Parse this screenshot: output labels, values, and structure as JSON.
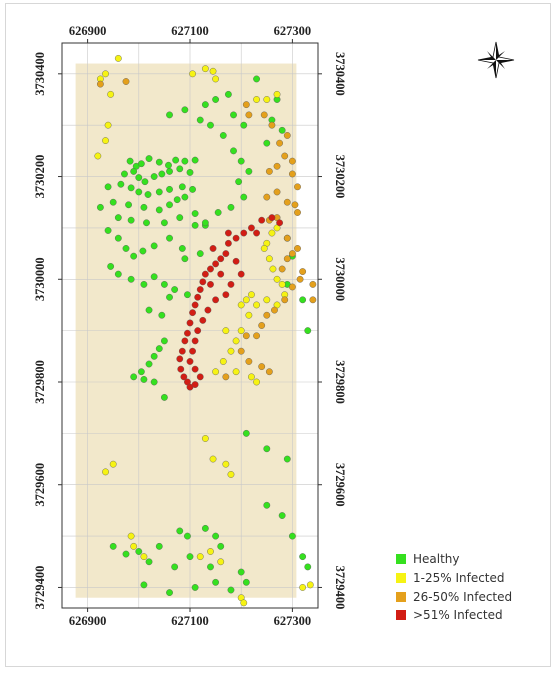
{
  "map": {
    "x_ticks": [
      "626900",
      "627100",
      "627300"
    ],
    "y_ticks": [
      "3730400",
      "3730200",
      "3730000",
      "3729800",
      "3729600",
      "3729400"
    ],
    "north_arrow_icon": "compass-rose-icon"
  },
  "legend": [
    {
      "label": "Healthy",
      "color": "#35e01f"
    },
    {
      "label": "1-25% Infected",
      "color": "#f6f313"
    },
    {
      "label": "26-50% Infected",
      "color": "#e4a01c"
    },
    {
      "label": ">51% Infected",
      "color": "#d21d14"
    }
  ],
  "colors": {
    "study_area": "#f2e8cb",
    "grid": "#c8c8c8",
    "healthy": "#35e01f",
    "low": "#f6f313",
    "medium": "#e4a01c",
    "high": "#d21d14"
  },
  "chart_data": {
    "type": "scatter",
    "xlim": [
      626850,
      627350
    ],
    "ylim": [
      3729360,
      3730460
    ],
    "grid": true,
    "legend_position": "bottom-right",
    "series": [
      {
        "name": "Healthy",
        "color": "#35e01f",
        "points": [
          [
            626983,
            3730230
          ],
          [
            626995,
            3730220
          ],
          [
            627005,
            3730225
          ],
          [
            627020,
            3730235
          ],
          [
            627040,
            3730228
          ],
          [
            627058,
            3730222
          ],
          [
            627072,
            3730232
          ],
          [
            627090,
            3730230
          ],
          [
            627110,
            3730232
          ],
          [
            626972,
            3730205
          ],
          [
            626990,
            3730210
          ],
          [
            627000,
            3730198
          ],
          [
            627012,
            3730190
          ],
          [
            627030,
            3730200
          ],
          [
            627045,
            3730205
          ],
          [
            627060,
            3730210
          ],
          [
            627080,
            3730215
          ],
          [
            627100,
            3730208
          ],
          [
            626940,
            3730180
          ],
          [
            626965,
            3730185
          ],
          [
            626985,
            3730178
          ],
          [
            627000,
            3730170
          ],
          [
            627018,
            3730165
          ],
          [
            627040,
            3730170
          ],
          [
            627060,
            3730175
          ],
          [
            627085,
            3730180
          ],
          [
            627105,
            3730175
          ],
          [
            626925,
            3730140
          ],
          [
            626950,
            3730150
          ],
          [
            626980,
            3730145
          ],
          [
            627010,
            3730140
          ],
          [
            627040,
            3730135
          ],
          [
            627060,
            3730145
          ],
          [
            627075,
            3730155
          ],
          [
            627090,
            3730160
          ],
          [
            626960,
            3730120
          ],
          [
            626985,
            3730115
          ],
          [
            627015,
            3730110
          ],
          [
            627050,
            3730110
          ],
          [
            627080,
            3730120
          ],
          [
            627110,
            3730128
          ],
          [
            626940,
            3730095
          ],
          [
            626960,
            3730080
          ],
          [
            626975,
            3730060
          ],
          [
            626990,
            3730045
          ],
          [
            627008,
            3730055
          ],
          [
            627030,
            3730065
          ],
          [
            627060,
            3730080
          ],
          [
            627085,
            3730060
          ],
          [
            627090,
            3730040
          ],
          [
            627120,
            3730050
          ],
          [
            627110,
            3730105
          ],
          [
            627130,
            3730105
          ],
          [
            626945,
            3730025
          ],
          [
            626960,
            3730010
          ],
          [
            626985,
            3730000
          ],
          [
            627010,
            3729990
          ],
          [
            627030,
            3730005
          ],
          [
            627050,
            3729990
          ],
          [
            627070,
            3729980
          ],
          [
            627095,
            3729970
          ],
          [
            627060,
            3729965
          ],
          [
            627020,
            3729940
          ],
          [
            627045,
            3729930
          ],
          [
            627050,
            3729880
          ],
          [
            627040,
            3729865
          ],
          [
            627030,
            3729850
          ],
          [
            627020,
            3729835
          ],
          [
            627005,
            3729820
          ],
          [
            626990,
            3729810
          ],
          [
            627010,
            3729805
          ],
          [
            627030,
            3729800
          ],
          [
            627050,
            3729770
          ],
          [
            627120,
            3730310
          ],
          [
            627140,
            3730300
          ],
          [
            627165,
            3730280
          ],
          [
            627185,
            3730250
          ],
          [
            627200,
            3730230
          ],
          [
            627215,
            3730210
          ],
          [
            627195,
            3730190
          ],
          [
            627205,
            3730160
          ],
          [
            627180,
            3730140
          ],
          [
            627155,
            3730130
          ],
          [
            627130,
            3730110
          ],
          [
            627185,
            3730320
          ],
          [
            627205,
            3730300
          ],
          [
            627150,
            3730350
          ],
          [
            627130,
            3730340
          ],
          [
            627090,
            3730330
          ],
          [
            627060,
            3730320
          ],
          [
            627175,
            3730360
          ],
          [
            627230,
            3730390
          ],
          [
            627260,
            3730310
          ],
          [
            627280,
            3730290
          ],
          [
            627250,
            3730265
          ],
          [
            627270,
            3730350
          ],
          [
            627290,
            3730080
          ],
          [
            627300,
            3730045
          ],
          [
            627290,
            3729990
          ],
          [
            627320,
            3729960
          ],
          [
            627330,
            3729900
          ],
          [
            627210,
            3729700
          ],
          [
            627250,
            3729670
          ],
          [
            627290,
            3729650
          ],
          [
            626950,
            3729480
          ],
          [
            626975,
            3729465
          ],
          [
            627000,
            3729470
          ],
          [
            627040,
            3729480
          ],
          [
            627080,
            3729510
          ],
          [
            627095,
            3729500
          ],
          [
            627130,
            3729515
          ],
          [
            627150,
            3729500
          ],
          [
            627160,
            3729480
          ],
          [
            627250,
            3729560
          ],
          [
            627280,
            3729540
          ],
          [
            627300,
            3729500
          ],
          [
            627320,
            3729460
          ],
          [
            627330,
            3729440
          ],
          [
            627200,
            3729430
          ],
          [
            627150,
            3729410
          ],
          [
            627180,
            3729395
          ],
          [
            627210,
            3729410
          ],
          [
            627110,
            3729400
          ],
          [
            627060,
            3729390
          ],
          [
            627010,
            3729405
          ],
          [
            627020,
            3729450
          ],
          [
            627070,
            3729440
          ],
          [
            627100,
            3729460
          ],
          [
            627140,
            3729440
          ]
        ]
      },
      {
        "name": "1-25% Infected",
        "color": "#f6f313",
        "points": [
          [
            626935,
            3730400
          ],
          [
            626925,
            3730390
          ],
          [
            626960,
            3730430
          ],
          [
            626945,
            3730360
          ],
          [
            626940,
            3730300
          ],
          [
            626935,
            3730270
          ],
          [
            626920,
            3730240
          ],
          [
            627105,
            3730400
          ],
          [
            627130,
            3730410
          ],
          [
            627145,
            3730405
          ],
          [
            627150,
            3730390
          ],
          [
            627230,
            3730350
          ],
          [
            627250,
            3730350
          ],
          [
            627270,
            3730360
          ],
          [
            627270,
            3730100
          ],
          [
            627260,
            3730090
          ],
          [
            627250,
            3730070
          ],
          [
            627245,
            3730060
          ],
          [
            627255,
            3730040
          ],
          [
            627262,
            3730020
          ],
          [
            627270,
            3730000
          ],
          [
            627280,
            3729990
          ],
          [
            627285,
            3729970
          ],
          [
            627270,
            3729950
          ],
          [
            627250,
            3729960
          ],
          [
            627200,
            3729950
          ],
          [
            627210,
            3729960
          ],
          [
            627220,
            3729970
          ],
          [
            627230,
            3729950
          ],
          [
            627215,
            3729930
          ],
          [
            627200,
            3729900
          ],
          [
            627190,
            3729880
          ],
          [
            627170,
            3729900
          ],
          [
            627180,
            3729860
          ],
          [
            627165,
            3729840
          ],
          [
            627190,
            3729820
          ],
          [
            627220,
            3729810
          ],
          [
            627230,
            3729800
          ],
          [
            627150,
            3729820
          ],
          [
            627145,
            3729650
          ],
          [
            627170,
            3729640
          ],
          [
            627180,
            3729620
          ],
          [
            627130,
            3729690
          ],
          [
            626950,
            3729640
          ],
          [
            626935,
            3729625
          ],
          [
            626985,
            3729500
          ],
          [
            626990,
            3729480
          ],
          [
            627010,
            3729460
          ],
          [
            627120,
            3729460
          ],
          [
            627140,
            3729470
          ],
          [
            627160,
            3729450
          ],
          [
            627200,
            3729380
          ],
          [
            627205,
            3729370
          ],
          [
            627320,
            3729400
          ],
          [
            627335,
            3729405
          ]
        ]
      },
      {
        "name": "26-50% Infected",
        "color": "#e4a01c",
        "points": [
          [
            626925,
            3730380
          ],
          [
            626975,
            3730385
          ],
          [
            627210,
            3730340
          ],
          [
            627215,
            3730320
          ],
          [
            627245,
            3730320
          ],
          [
            627260,
            3730300
          ],
          [
            627290,
            3730280
          ],
          [
            627275,
            3730265
          ],
          [
            627285,
            3730240
          ],
          [
            627300,
            3730230
          ],
          [
            627270,
            3730220
          ],
          [
            627255,
            3730210
          ],
          [
            627300,
            3730205
          ],
          [
            627310,
            3730180
          ],
          [
            627270,
            3730170
          ],
          [
            627250,
            3730160
          ],
          [
            627290,
            3730150
          ],
          [
            627305,
            3730145
          ],
          [
            627310,
            3730130
          ],
          [
            627270,
            3730120
          ],
          [
            627255,
            3730115
          ],
          [
            627290,
            3730080
          ],
          [
            627310,
            3730060
          ],
          [
            627300,
            3730050
          ],
          [
            627290,
            3730040
          ],
          [
            627280,
            3730020
          ],
          [
            627320,
            3730015
          ],
          [
            627315,
            3730000
          ],
          [
            627300,
            3729985
          ],
          [
            627285,
            3729960
          ],
          [
            627265,
            3729940
          ],
          [
            627250,
            3729930
          ],
          [
            627240,
            3729910
          ],
          [
            627230,
            3729890
          ],
          [
            627210,
            3729890
          ],
          [
            627200,
            3729860
          ],
          [
            627215,
            3729840
          ],
          [
            627240,
            3729830
          ],
          [
            627255,
            3729820
          ],
          [
            627170,
            3729810
          ],
          [
            627340,
            3729990
          ],
          [
            627340,
            3729960
          ]
        ]
      },
      {
        "name": ">51% Infected",
        "color": "#d21d14",
        "points": [
          [
            627275,
            3730110
          ],
          [
            627260,
            3730120
          ],
          [
            627240,
            3730115
          ],
          [
            627220,
            3730100
          ],
          [
            627205,
            3730090
          ],
          [
            627190,
            3730080
          ],
          [
            627175,
            3730070
          ],
          [
            627170,
            3730050
          ],
          [
            627160,
            3730040
          ],
          [
            627150,
            3730030
          ],
          [
            627140,
            3730020
          ],
          [
            627130,
            3730010
          ],
          [
            627125,
            3729995
          ],
          [
            627120,
            3729980
          ],
          [
            627115,
            3729965
          ],
          [
            627110,
            3729950
          ],
          [
            627105,
            3729935
          ],
          [
            627100,
            3729915
          ],
          [
            627095,
            3729895
          ],
          [
            627090,
            3729880
          ],
          [
            627085,
            3729860
          ],
          [
            627080,
            3729845
          ],
          [
            627082,
            3729825
          ],
          [
            627088,
            3729810
          ],
          [
            627095,
            3729800
          ],
          [
            627100,
            3729790
          ],
          [
            627110,
            3729795
          ],
          [
            627145,
            3730060
          ],
          [
            627190,
            3730035
          ],
          [
            627200,
            3730010
          ],
          [
            627180,
            3729990
          ],
          [
            627170,
            3729970
          ],
          [
            627150,
            3729960
          ],
          [
            627135,
            3729940
          ],
          [
            627125,
            3729920
          ],
          [
            627115,
            3729900
          ],
          [
            627110,
            3729880
          ],
          [
            627105,
            3729860
          ],
          [
            627100,
            3729840
          ],
          [
            627110,
            3729825
          ],
          [
            627120,
            3729810
          ],
          [
            627160,
            3730010
          ],
          [
            627140,
            3729990
          ],
          [
            627175,
            3730090
          ],
          [
            627230,
            3730090
          ]
        ]
      }
    ]
  }
}
